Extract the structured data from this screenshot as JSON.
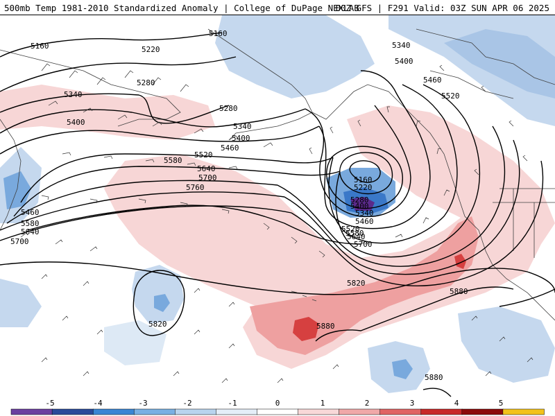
{
  "header": {
    "title_left": "500mb Temp 1981-2010 Standardized Anomaly | College of DuPage NEXLAB",
    "title_right": "00Z GFS | F291 Valid: 03Z SUN APR 06 2025"
  },
  "map": {
    "field": "500mb height contours (dam) with temperature standardized anomaly shading and wind barbs",
    "contour_labels": [
      "5160",
      "5160",
      "5220",
      "5280",
      "5280",
      "5340",
      "5340",
      "5340",
      "5400",
      "5400",
      "5400",
      "5460",
      "5460",
      "5460",
      "5520",
      "5520",
      "5580",
      "5580",
      "5640",
      "5640",
      "5700",
      "5700",
      "5760",
      "5820",
      "5820",
      "5880",
      "5880",
      "5880",
      "5160",
      "5220",
      "5280",
      "5340",
      "5400",
      "5460",
      "5520",
      "5580",
      "5640",
      "5700"
    ],
    "colors": {
      "strong_negative": "#5a2a8a",
      "negative_3": "#3a78c8",
      "negative_2": "#79a9dd",
      "negative_1": "#c5d8ee",
      "positive_1": "#f7d6d6",
      "positive_2": "#eea0a0",
      "positive_3": "#d64040",
      "contour": "#000000",
      "coastline": "#404040"
    }
  },
  "colorbar": {
    "ticks": [
      "-5",
      "-4",
      "-3",
      "-2",
      "-1",
      "0",
      "1",
      "2",
      "3",
      "4",
      "5"
    ],
    "colors": [
      "#6b3fa0",
      "#2a4a9a",
      "#3a86d4",
      "#79b0e3",
      "#b8d4ee",
      "#e4eef8",
      "#ffffff",
      "#f8d8d8",
      "#f0a8a8",
      "#e06464",
      "#c82828",
      "#8b0a0a",
      "#f2c21b"
    ]
  }
}
